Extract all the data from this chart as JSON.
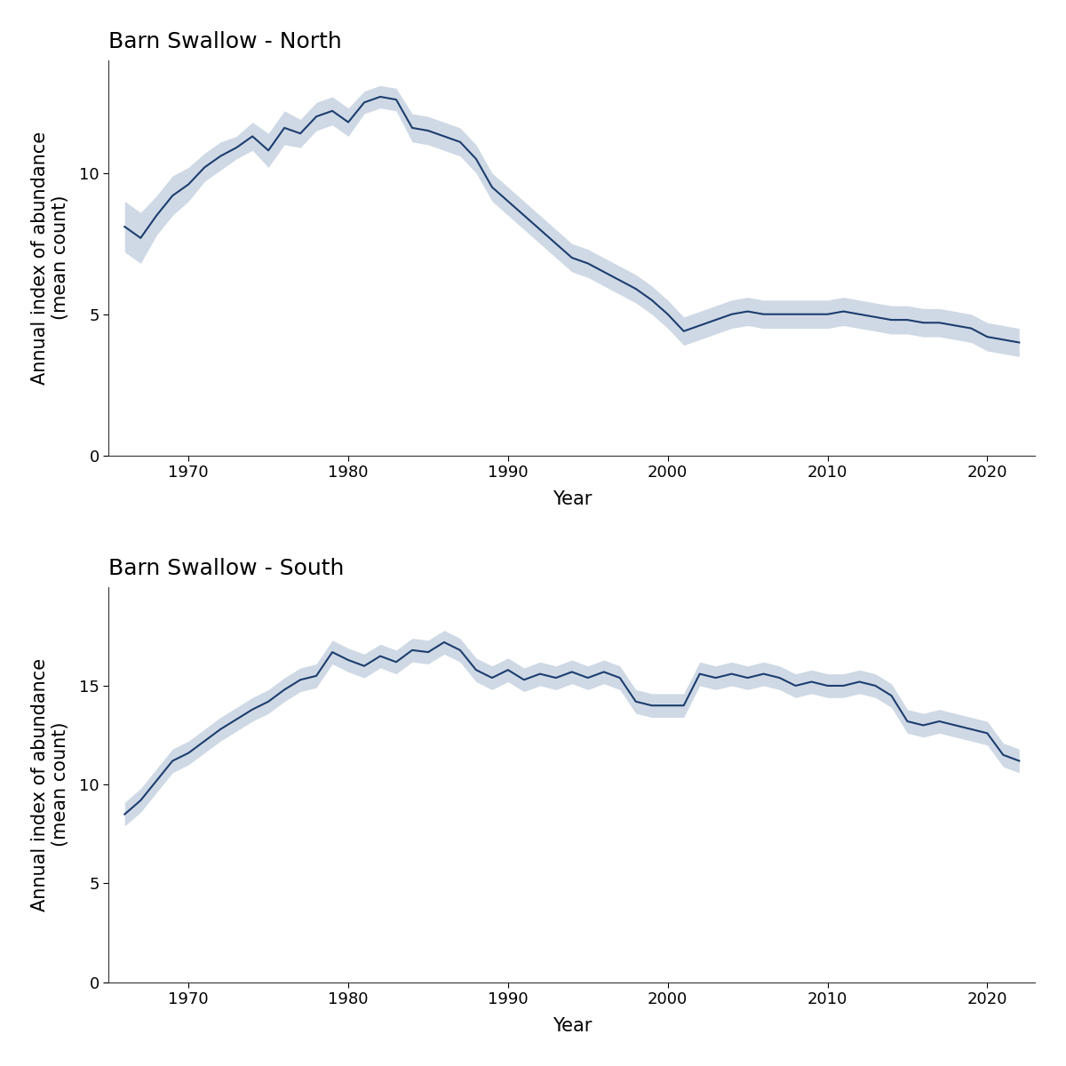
{
  "north": {
    "title": "Barn Swallow - North",
    "years": [
      1966,
      1967,
      1968,
      1969,
      1970,
      1971,
      1972,
      1973,
      1974,
      1975,
      1976,
      1977,
      1978,
      1979,
      1980,
      1981,
      1982,
      1983,
      1984,
      1985,
      1986,
      1987,
      1988,
      1989,
      1990,
      1991,
      1992,
      1993,
      1994,
      1995,
      1996,
      1997,
      1998,
      1999,
      2000,
      2001,
      2002,
      2003,
      2004,
      2005,
      2006,
      2007,
      2008,
      2009,
      2010,
      2011,
      2012,
      2013,
      2014,
      2015,
      2016,
      2017,
      2018,
      2019,
      2020,
      2021,
      2022
    ],
    "mean": [
      8.1,
      7.7,
      8.5,
      9.2,
      9.6,
      10.2,
      10.6,
      10.9,
      11.3,
      10.8,
      11.6,
      11.4,
      12.0,
      12.2,
      11.8,
      12.5,
      12.7,
      12.6,
      11.6,
      11.5,
      11.3,
      11.1,
      10.5,
      9.5,
      9.0,
      8.5,
      8.0,
      7.5,
      7.0,
      6.8,
      6.5,
      6.2,
      5.9,
      5.5,
      5.0,
      4.4,
      4.6,
      4.8,
      5.0,
      5.1,
      5.0,
      5.0,
      5.0,
      5.0,
      5.0,
      5.1,
      5.0,
      4.9,
      4.8,
      4.8,
      4.7,
      4.7,
      4.6,
      4.5,
      4.2,
      4.1,
      4.0
    ],
    "lower": [
      7.2,
      6.8,
      7.8,
      8.5,
      9.0,
      9.7,
      10.1,
      10.5,
      10.8,
      10.2,
      11.0,
      10.9,
      11.5,
      11.7,
      11.3,
      12.1,
      12.3,
      12.2,
      11.1,
      11.0,
      10.8,
      10.6,
      10.0,
      9.0,
      8.5,
      8.0,
      7.5,
      7.0,
      6.5,
      6.3,
      6.0,
      5.7,
      5.4,
      5.0,
      4.5,
      3.9,
      4.1,
      4.3,
      4.5,
      4.6,
      4.5,
      4.5,
      4.5,
      4.5,
      4.5,
      4.6,
      4.5,
      4.4,
      4.3,
      4.3,
      4.2,
      4.2,
      4.1,
      4.0,
      3.7,
      3.6,
      3.5
    ],
    "upper": [
      9.0,
      8.6,
      9.2,
      9.9,
      10.2,
      10.7,
      11.1,
      11.3,
      11.8,
      11.4,
      12.2,
      11.9,
      12.5,
      12.7,
      12.3,
      12.9,
      13.1,
      13.0,
      12.1,
      12.0,
      11.8,
      11.6,
      11.0,
      10.0,
      9.5,
      9.0,
      8.5,
      8.0,
      7.5,
      7.3,
      7.0,
      6.7,
      6.4,
      6.0,
      5.5,
      4.9,
      5.1,
      5.3,
      5.5,
      5.6,
      5.5,
      5.5,
      5.5,
      5.5,
      5.5,
      5.6,
      5.5,
      5.4,
      5.3,
      5.3,
      5.2,
      5.2,
      5.1,
      5.0,
      4.7,
      4.6,
      4.5
    ],
    "ylim": [
      0,
      14
    ],
    "yticks": [
      0,
      5,
      10
    ]
  },
  "south": {
    "title": "Barn Swallow - South",
    "years": [
      1966,
      1967,
      1968,
      1969,
      1970,
      1971,
      1972,
      1973,
      1974,
      1975,
      1976,
      1977,
      1978,
      1979,
      1980,
      1981,
      1982,
      1983,
      1984,
      1985,
      1986,
      1987,
      1988,
      1989,
      1990,
      1991,
      1992,
      1993,
      1994,
      1995,
      1996,
      1997,
      1998,
      1999,
      2000,
      2001,
      2002,
      2003,
      2004,
      2005,
      2006,
      2007,
      2008,
      2009,
      2010,
      2011,
      2012,
      2013,
      2014,
      2015,
      2016,
      2017,
      2018,
      2019,
      2020,
      2021,
      2022
    ],
    "mean": [
      8.5,
      9.2,
      10.2,
      11.2,
      11.6,
      12.2,
      12.8,
      13.3,
      13.8,
      14.2,
      14.8,
      15.3,
      15.5,
      16.7,
      16.3,
      16.0,
      16.5,
      16.2,
      16.8,
      16.7,
      17.2,
      16.8,
      15.8,
      15.4,
      15.8,
      15.3,
      15.6,
      15.4,
      15.7,
      15.4,
      15.7,
      15.4,
      14.2,
      14.0,
      14.0,
      14.0,
      15.6,
      15.4,
      15.6,
      15.4,
      15.6,
      15.4,
      15.0,
      15.2,
      15.0,
      15.0,
      15.2,
      15.0,
      14.5,
      13.2,
      13.0,
      13.2,
      13.0,
      12.8,
      12.6,
      11.5,
      11.2
    ],
    "lower": [
      7.9,
      8.6,
      9.6,
      10.6,
      11.0,
      11.6,
      12.2,
      12.7,
      13.2,
      13.6,
      14.2,
      14.7,
      14.9,
      16.1,
      15.7,
      15.4,
      15.9,
      15.6,
      16.2,
      16.1,
      16.6,
      16.2,
      15.2,
      14.8,
      15.2,
      14.7,
      15.0,
      14.8,
      15.1,
      14.8,
      15.1,
      14.8,
      13.6,
      13.4,
      13.4,
      13.4,
      15.0,
      14.8,
      15.0,
      14.8,
      15.0,
      14.8,
      14.4,
      14.6,
      14.4,
      14.4,
      14.6,
      14.4,
      13.9,
      12.6,
      12.4,
      12.6,
      12.4,
      12.2,
      12.0,
      10.9,
      10.6
    ],
    "upper": [
      9.1,
      9.8,
      10.8,
      11.8,
      12.2,
      12.8,
      13.4,
      13.9,
      14.4,
      14.8,
      15.4,
      15.9,
      16.1,
      17.3,
      16.9,
      16.6,
      17.1,
      16.8,
      17.4,
      17.3,
      17.8,
      17.4,
      16.4,
      16.0,
      16.4,
      15.9,
      16.2,
      16.0,
      16.3,
      16.0,
      16.3,
      16.0,
      14.8,
      14.6,
      14.6,
      14.6,
      16.2,
      16.0,
      16.2,
      16.0,
      16.2,
      16.0,
      15.6,
      15.8,
      15.6,
      15.6,
      15.8,
      15.6,
      15.1,
      13.8,
      13.6,
      13.8,
      13.6,
      13.4,
      13.2,
      12.1,
      11.8
    ],
    "ylim": [
      0,
      20
    ],
    "yticks": [
      0,
      5,
      10,
      15
    ]
  },
  "line_color": "#1c3d6e",
  "band_color": "#a0b4cc",
  "band_alpha": 0.5,
  "ylabel": "Annual index of abundance\n(mean count)",
  "xlabel": "Year",
  "title_fontsize": 18,
  "label_fontsize": 15,
  "tick_fontsize": 13,
  "background_color": "#ffffff",
  "spine_color": "#333333",
  "xticks": [
    1970,
    1980,
    1990,
    2000,
    2010,
    2020
  ]
}
